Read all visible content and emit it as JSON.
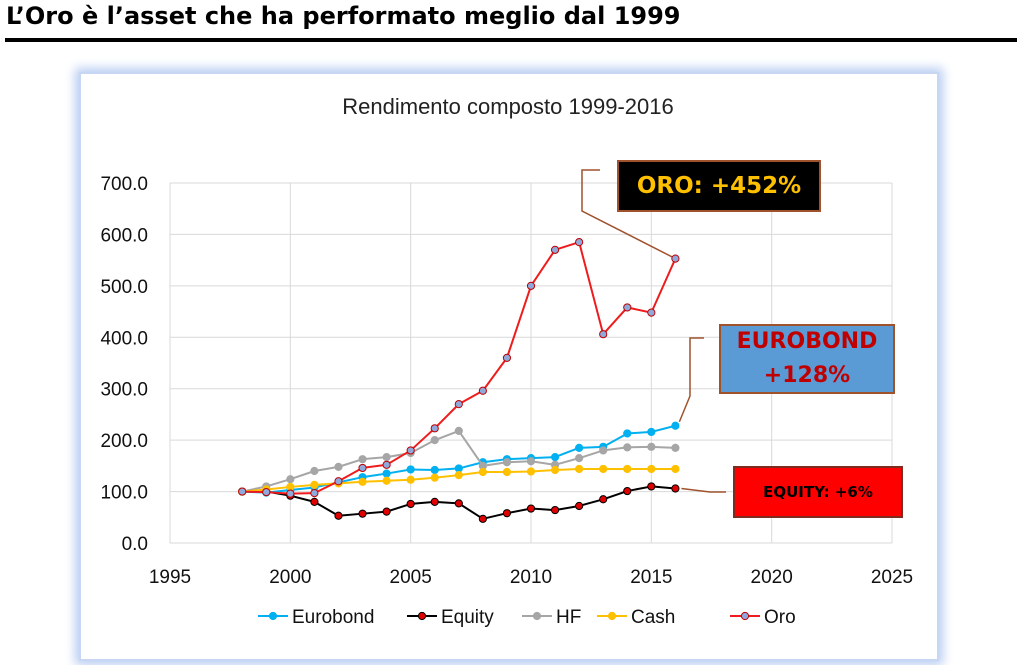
{
  "page": {
    "title": "L’Oro è l’asset che ha performato meglio dal 1999"
  },
  "callouts": {
    "oro": "ORO: +452%",
    "eurobond_line1": "EUROBOND",
    "eurobond_line2": "+128%",
    "equity": "EQUITY: +6%"
  },
  "chart_data": {
    "type": "line",
    "title": "Rendimento composto 1999-2016",
    "xlabel": "",
    "ylabel": "",
    "xlim": [
      1995,
      2025
    ],
    "ylim": [
      0,
      700
    ],
    "x_ticks": [
      1995,
      2000,
      2005,
      2010,
      2015,
      2020,
      2025
    ],
    "y_ticks": [
      0,
      100,
      200,
      300,
      400,
      500,
      600,
      700
    ],
    "grid": true,
    "legend_position": "bottom",
    "x": [
      1998,
      1999,
      2000,
      2001,
      2002,
      2003,
      2004,
      2005,
      2006,
      2007,
      2008,
      2009,
      2010,
      2011,
      2012,
      2013,
      2014,
      2015,
      2016
    ],
    "series": [
      {
        "name": "Eurobond",
        "color": "#00b0f0",
        "marker": "#00b0f0",
        "values": [
          100,
          98,
          103,
          108,
          118,
          128,
          135,
          143,
          142,
          145,
          157,
          163,
          165,
          167,
          185,
          187,
          213,
          216,
          228
        ]
      },
      {
        "name": "Equity",
        "color": "#000000",
        "marker": "#e00000",
        "values": [
          100,
          100,
          92,
          80,
          53,
          57,
          61,
          76,
          80,
          77,
          47,
          58,
          67,
          64,
          72,
          85,
          101,
          110,
          106
        ]
      },
      {
        "name": "HF",
        "color": "#a6a6a6",
        "marker": "#a6a6a6",
        "values": [
          100,
          110,
          124,
          140,
          148,
          163,
          167,
          175,
          200,
          218,
          150,
          157,
          159,
          152,
          165,
          180,
          186,
          187,
          185
        ]
      },
      {
        "name": "Cash",
        "color": "#ffc000",
        "marker": "#ffc000",
        "values": [
          100,
          104,
          109,
          113,
          116,
          119,
          121,
          123,
          127,
          132,
          138,
          138,
          139,
          142,
          144,
          144,
          144,
          144,
          144
        ]
      },
      {
        "name": "Oro",
        "color": "#ee1c1c",
        "marker": "#8ea9db",
        "values": [
          100,
          99,
          96,
          97,
          120,
          146,
          152,
          180,
          223,
          270,
          296,
          360,
          500,
          570,
          585,
          406,
          458,
          448,
          553
        ]
      }
    ]
  }
}
